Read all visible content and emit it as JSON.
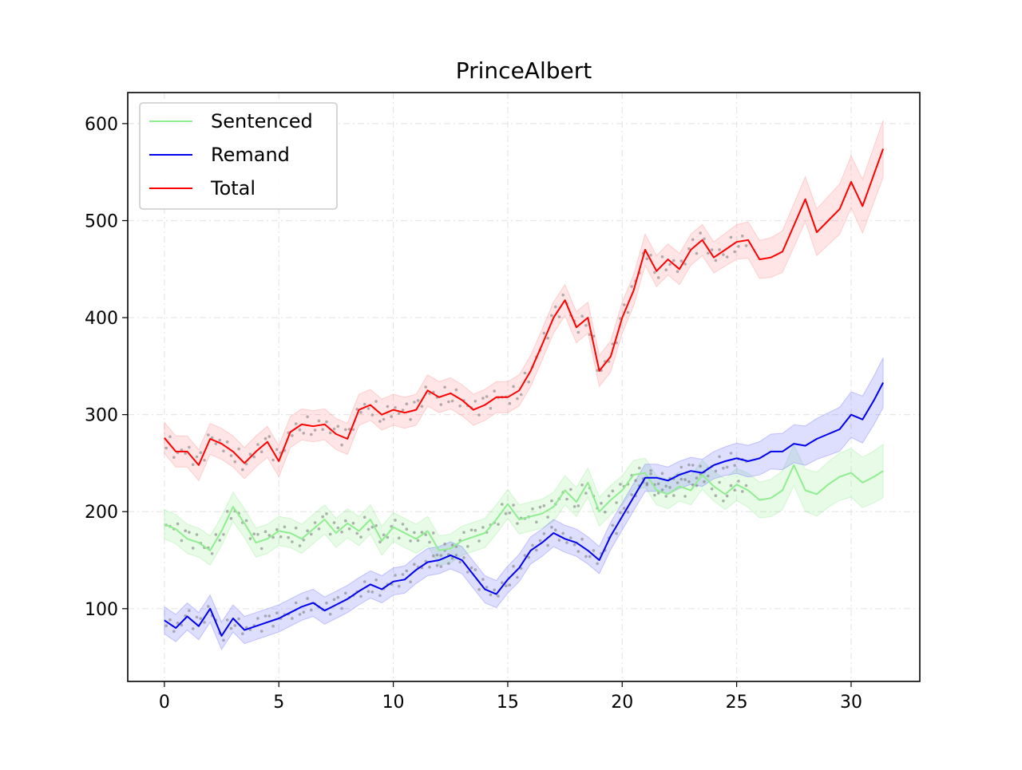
{
  "chart_data": {
    "type": "line",
    "title": "PrinceAlbert",
    "xlabel": "",
    "ylabel": "",
    "xlim": [
      -1.6,
      33.0
    ],
    "ylim": [
      25,
      632
    ],
    "xticks": [
      0,
      5,
      10,
      15,
      20,
      25,
      30
    ],
    "yticks": [
      100,
      200,
      300,
      400,
      500,
      600
    ],
    "grid": true,
    "legend_position": "top-left",
    "legend": [
      "Sentenced",
      "Remand",
      "Total"
    ],
    "series": [
      {
        "name": "Sentenced",
        "color": "#90ee90",
        "band_color": "#90ee90",
        "x": [
          0,
          0.5,
          1,
          1.5,
          2,
          2.5,
          3,
          3.5,
          4,
          4.5,
          5,
          5.5,
          6,
          6.5,
          7,
          7.5,
          8,
          8.5,
          9,
          9.5,
          10,
          10.5,
          11,
          11.5,
          12,
          12.5,
          13,
          13.5,
          14,
          14.5,
          15,
          15.5,
          16,
          16.5,
          17,
          17.5,
          18,
          18.5,
          19,
          19.5,
          20,
          20.5,
          21,
          21.5,
          22,
          22.5,
          23,
          23.5,
          24,
          24.5,
          25,
          25.5,
          26,
          26.5,
          27,
          27.5,
          28,
          28.5,
          29,
          29.5,
          30,
          30.5,
          31,
          31.4
        ],
        "values": [
          187,
          182,
          172,
          168,
          160,
          180,
          205,
          188,
          168,
          172,
          180,
          178,
          172,
          182,
          192,
          178,
          188,
          180,
          192,
          170,
          184,
          178,
          172,
          180,
          160,
          162,
          170,
          174,
          178,
          192,
          208,
          192,
          195,
          198,
          205,
          222,
          210,
          230,
          200,
          212,
          222,
          238,
          240,
          222,
          218,
          226,
          222,
          238,
          226,
          218,
          228,
          222,
          212,
          214,
          222,
          248,
          222,
          218,
          228,
          236,
          240,
          230,
          236,
          242
        ],
        "band": 15
      },
      {
        "name": "Remand",
        "color": "#0000ee",
        "band_color": "#6a6aff",
        "x": [
          0,
          0.5,
          1,
          1.5,
          2,
          2.5,
          3,
          3.5,
          4,
          4.5,
          5,
          5.5,
          6,
          6.5,
          7,
          7.5,
          8,
          8.5,
          9,
          9.5,
          10,
          10.5,
          11,
          11.5,
          12,
          12.5,
          13,
          13.5,
          14,
          14.5,
          15,
          15.5,
          16,
          16.5,
          17,
          17.5,
          18,
          18.5,
          19,
          19.5,
          20,
          20.5,
          21,
          21.5,
          22,
          22.5,
          23,
          23.5,
          24,
          24.5,
          25,
          25.5,
          26,
          26.5,
          27,
          27.5,
          28,
          28.5,
          29,
          29.5,
          30,
          30.5,
          31,
          31.4
        ],
        "values": [
          88,
          80,
          92,
          82,
          100,
          72,
          90,
          78,
          82,
          86,
          90,
          96,
          102,
          106,
          98,
          104,
          110,
          118,
          125,
          120,
          128,
          130,
          140,
          148,
          150,
          155,
          150,
          135,
          120,
          115,
          130,
          142,
          160,
          168,
          178,
          172,
          168,
          160,
          150,
          175,
          195,
          215,
          235,
          235,
          232,
          238,
          242,
          240,
          248,
          252,
          255,
          252,
          255,
          262,
          262,
          270,
          268,
          275,
          280,
          285,
          300,
          295,
          315,
          333
        ],
        "band": 14
      },
      {
        "name": "Total",
        "color": "#ff0000",
        "band_color": "#ff8a8a",
        "x": [
          0,
          0.5,
          1,
          1.5,
          2,
          2.5,
          3,
          3.5,
          4,
          4.5,
          5,
          5.5,
          6,
          6.5,
          7,
          7.5,
          8,
          8.5,
          9,
          9.5,
          10,
          10.5,
          11,
          11.5,
          12,
          12.5,
          13,
          13.5,
          14,
          14.5,
          15,
          15.5,
          16,
          16.5,
          17,
          17.5,
          18,
          18.5,
          19,
          19.5,
          20,
          20.5,
          21,
          21.5,
          22,
          22.5,
          23,
          23.5,
          24,
          24.5,
          25,
          25.5,
          26,
          26.5,
          27,
          27.5,
          28,
          28.5,
          29,
          29.5,
          30,
          30.5,
          31,
          31.4
        ],
        "values": [
          276,
          262,
          262,
          248,
          275,
          270,
          262,
          250,
          262,
          272,
          252,
          282,
          290,
          288,
          290,
          280,
          275,
          305,
          310,
          300,
          305,
          302,
          305,
          325,
          318,
          322,
          315,
          305,
          310,
          318,
          318,
          325,
          345,
          372,
          400,
          418,
          390,
          400,
          345,
          360,
          400,
          428,
          470,
          448,
          460,
          450,
          470,
          480,
          462,
          470,
          478,
          480,
          460,
          462,
          468,
          495,
          522,
          488,
          500,
          512,
          540,
          515,
          548,
          574
        ],
        "band": 16
      }
    ]
  }
}
